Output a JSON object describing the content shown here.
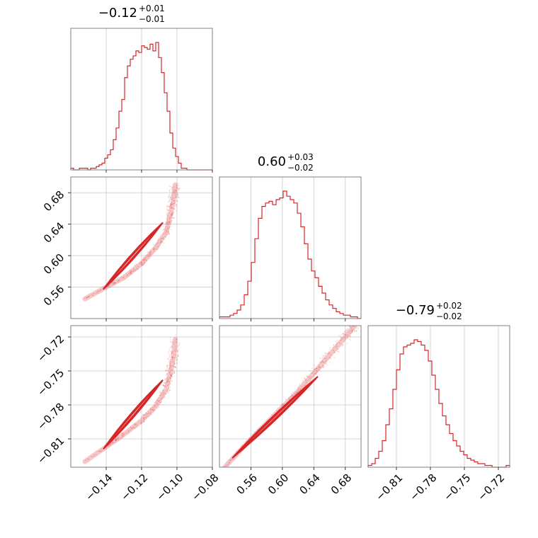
{
  "chart_data": {
    "type": "corner",
    "color": "#d62728",
    "grid": true,
    "parameters": [
      {
        "title": {
          "value": "−0.12",
          "plus": "+0.01",
          "minus": "−0.01"
        },
        "range": [
          -0.16,
          -0.08
        ],
        "ticks": [
          -0.14,
          -0.12,
          -0.1,
          -0.08
        ],
        "tick_labels": [
          "−0.14",
          "−0.12",
          "−0.10",
          "−0.08"
        ],
        "hist": [
          1,
          0,
          0,
          1,
          1,
          1,
          0,
          1,
          1,
          2,
          3,
          4,
          7,
          9,
          12,
          18,
          25,
          35,
          42,
          55,
          62,
          66,
          68,
          71,
          70,
          74,
          73,
          72,
          75,
          71,
          76,
          67,
          58,
          46,
          35,
          22,
          13,
          8,
          4,
          1,
          1,
          0,
          0,
          0,
          0,
          0,
          0,
          0,
          0,
          0
        ]
      },
      {
        "title": {
          "value": "0.60",
          "plus": "+0.03",
          "minus": "−0.02"
        },
        "range": [
          0.52,
          0.7
        ],
        "ticks": [
          0.56,
          0.6,
          0.64,
          0.68
        ],
        "tick_labels": [
          "0.56",
          "0.60",
          "0.64",
          "0.68"
        ],
        "hist": [
          1,
          1,
          1,
          2,
          3,
          5,
          8,
          14,
          22,
          33,
          47,
          59,
          66,
          68,
          69,
          67,
          70,
          71,
          75,
          72,
          70,
          68,
          62,
          54,
          44,
          35,
          28,
          24,
          19,
          15,
          11,
          8,
          6,
          4,
          3,
          2,
          2,
          1,
          1,
          0
        ]
      },
      {
        "title": {
          "value": "−0.79",
          "plus": "+0.02",
          "minus": "−0.02"
        },
        "range": [
          -0.835,
          -0.71
        ],
        "ticks": [
          -0.81,
          -0.78,
          -0.75,
          -0.72
        ],
        "tick_labels": [
          "−0.81",
          "−0.78",
          "−0.75",
          "−0.72"
        ],
        "hist": [
          1,
          2,
          5,
          9,
          15,
          24,
          33,
          44,
          55,
          64,
          68,
          69,
          70,
          72,
          71,
          69,
          66,
          60,
          52,
          44,
          36,
          29,
          24,
          19,
          15,
          12,
          9,
          7,
          5,
          4,
          3,
          2,
          2,
          1,
          1,
          0,
          0,
          0,
          0,
          1
        ]
      }
    ],
    "pairs": [
      {
        "row": 1,
        "col": 0,
        "curve": [
          [
            -0.152,
            0.545
          ],
          [
            -0.14,
            0.56
          ],
          [
            -0.13,
            0.572
          ],
          [
            -0.12,
            0.59
          ],
          [
            -0.112,
            0.61
          ],
          [
            -0.106,
            0.63
          ],
          [
            -0.104,
            0.65
          ],
          [
            -0.102,
            0.67
          ],
          [
            -0.101,
            0.69
          ]
        ],
        "contour_end": [
          -0.108,
          0.642
        ],
        "scatter_top": 0.695
      },
      {
        "row": 2,
        "col": 0,
        "curve": [
          [
            -0.152,
            -0.83
          ],
          [
            -0.14,
            -0.817
          ],
          [
            -0.13,
            -0.806
          ],
          [
            -0.12,
            -0.794
          ],
          [
            -0.112,
            -0.781
          ],
          [
            -0.106,
            -0.766
          ],
          [
            -0.104,
            -0.752
          ],
          [
            -0.102,
            -0.738
          ],
          [
            -0.101,
            -0.722
          ]
        ],
        "contour_end": [
          -0.108,
          -0.758
        ],
        "scatter_top": -0.718
      },
      {
        "row": 2,
        "col": 1,
        "curve": [
          [
            0.52,
            -0.84
          ],
          [
            0.54,
            -0.825
          ],
          [
            0.56,
            -0.81
          ],
          [
            0.58,
            -0.796
          ],
          [
            0.6,
            -0.782
          ],
          [
            0.62,
            -0.768
          ],
          [
            0.64,
            -0.752
          ],
          [
            0.66,
            -0.736
          ],
          [
            0.68,
            -0.72
          ],
          [
            0.692,
            -0.71
          ]
        ],
        "contour_end": [
          0.645,
          -0.755
        ],
        "scatter_top": -0.712
      }
    ]
  }
}
